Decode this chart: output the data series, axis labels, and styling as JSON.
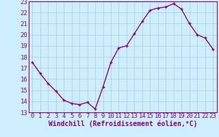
{
  "x": [
    0,
    1,
    2,
    3,
    4,
    5,
    6,
    7,
    8,
    9,
    10,
    11,
    12,
    13,
    14,
    15,
    16,
    17,
    18,
    19,
    20,
    21,
    22,
    23
  ],
  "y": [
    17.5,
    16.5,
    15.6,
    14.9,
    14.1,
    13.8,
    13.7,
    13.9,
    13.3,
    15.3,
    17.5,
    18.8,
    19.0,
    20.1,
    21.2,
    22.2,
    22.4,
    22.5,
    22.8,
    22.3,
    21.0,
    20.0,
    19.7,
    18.7
  ],
  "line_color": "#880088",
  "marker": "P",
  "marker_size": 2.5,
  "bg_color": "#cceeff",
  "grid_color": "#aacccc",
  "xlabel": "Windchill (Refroidissement éolien,°C)",
  "xlabel_color": "#880088",
  "tick_color": "#880088",
  "spine_color": "#880088",
  "ylim": [
    13,
    23
  ],
  "xlim": [
    -0.5,
    23.5
  ],
  "yticks": [
    13,
    14,
    15,
    16,
    17,
    18,
    19,
    20,
    21,
    22,
    23
  ],
  "xticks": [
    0,
    1,
    2,
    3,
    4,
    5,
    6,
    7,
    8,
    9,
    10,
    11,
    12,
    13,
    14,
    15,
    16,
    17,
    18,
    19,
    20,
    21,
    22,
    23
  ],
  "line_width": 1.0,
  "tick_fontsize": 6.5,
  "xlabel_fontsize": 7.0
}
